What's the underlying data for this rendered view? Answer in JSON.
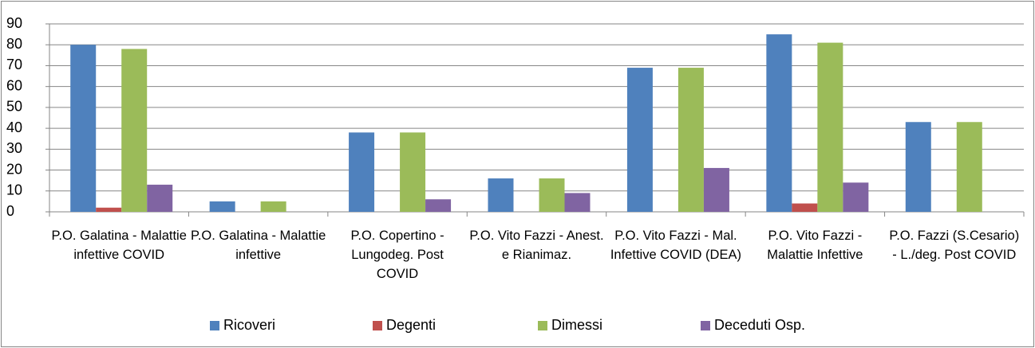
{
  "chart_data": {
    "type": "bar",
    "categories": [
      "P.O. Galatina - Malattie infettive COVID",
      "P.O. Galatina - Malattie infettive",
      "P.O. Copertino - Lungodeg. Post COVID",
      "P.O. Vito Fazzi - Anest. e Rianimaz.",
      "P.O. Vito Fazzi - Mal. Infettive COVID (DEA)",
      "P.O. Vito Fazzi - Malattie Infettive",
      "P.O. Fazzi (S.Cesario) - L./deg. Post COVID"
    ],
    "series": [
      {
        "name": "Ricoveri",
        "color": "#4f81bd",
        "values": [
          80,
          5,
          38,
          16,
          69,
          85,
          43
        ]
      },
      {
        "name": "Degenti",
        "color": "#c0504d",
        "values": [
          2,
          0,
          0,
          0,
          0,
          4,
          0
        ]
      },
      {
        "name": "Dimessi",
        "color": "#9bbb59",
        "values": [
          78,
          5,
          38,
          16,
          69,
          81,
          43
        ]
      },
      {
        "name": "Deceduti Osp.",
        "color": "#8064a2",
        "values": [
          13,
          0,
          6,
          9,
          21,
          14,
          0
        ]
      }
    ],
    "ylim": [
      0,
      90
    ],
    "yticks": [
      0,
      10,
      20,
      30,
      40,
      50,
      60,
      70,
      80,
      90
    ],
    "grid": true,
    "legend": "bottom"
  }
}
